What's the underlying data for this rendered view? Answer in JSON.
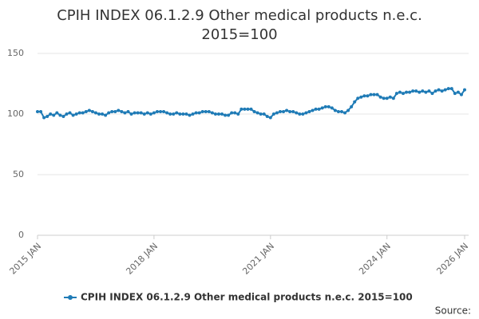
{
  "chart_data": {
    "type": "line",
    "title": "CPIH INDEX 06.1.2.9 Other medical products n.e.c. 2015=100",
    "source": "Source:",
    "categories": [
      "2015 JAN",
      null,
      null,
      null,
      null,
      null,
      null,
      null,
      null,
      null,
      null,
      null,
      null,
      null,
      null,
      null,
      null,
      null,
      null,
      null,
      null,
      null,
      null,
      null,
      null,
      null,
      null,
      null,
      null,
      null,
      null,
      null,
      null,
      null,
      null,
      null,
      "2018 JAN",
      null,
      null,
      null,
      null,
      null,
      null,
      null,
      null,
      null,
      null,
      null,
      null,
      null,
      null,
      null,
      null,
      null,
      null,
      null,
      null,
      null,
      null,
      null,
      null,
      null,
      null,
      null,
      null,
      null,
      null,
      null,
      null,
      null,
      null,
      null,
      "2021 JAN",
      null,
      null,
      null,
      null,
      null,
      null,
      null,
      null,
      null,
      null,
      null,
      null,
      null,
      null,
      null,
      null,
      null,
      null,
      null,
      null,
      null,
      null,
      null,
      null,
      null,
      null,
      null,
      null,
      null,
      null,
      null,
      null,
      null,
      null,
      null,
      "2024 JAN",
      null,
      null,
      null,
      null,
      null,
      null,
      null,
      null,
      null,
      null,
      null,
      null,
      null,
      null,
      null,
      null,
      null,
      null,
      null,
      null,
      null,
      null,
      null,
      "2026 JAN"
    ],
    "series": [
      {
        "name": "CPIH INDEX 06.1.2.9 Other medical products n.e.c. 2015=100",
        "color": "#1f7bb6",
        "values": [
          102,
          102,
          97,
          98,
          100,
          99,
          101,
          99,
          98,
          100,
          101,
          99,
          100,
          101,
          101,
          102,
          103,
          102,
          101,
          100,
          100,
          99,
          101,
          102,
          102,
          103,
          102,
          101,
          102,
          100,
          101,
          101,
          101,
          100,
          101,
          100,
          101,
          102,
          102,
          102,
          101,
          100,
          100,
          101,
          100,
          100,
          100,
          99,
          100,
          101,
          101,
          102,
          102,
          102,
          101,
          100,
          100,
          100,
          99,
          99,
          101,
          101,
          100,
          104,
          104,
          104,
          104,
          102,
          101,
          100,
          100,
          98,
          97,
          100,
          101,
          102,
          102,
          103,
          102,
          102,
          101,
          100,
          100,
          101,
          102,
          103,
          104,
          104,
          105,
          106,
          106,
          105,
          103,
          102,
          102,
          101,
          103,
          106,
          110,
          113,
          114,
          115,
          115,
          116,
          116,
          116,
          114,
          113,
          113,
          114,
          113,
          117,
          118,
          117,
          118,
          118,
          119,
          119,
          118,
          119,
          118,
          119,
          117,
          119,
          120,
          119,
          120,
          121,
          121,
          117,
          118,
          116,
          120
        ]
      }
    ],
    "ylim": [
      0,
      150
    ],
    "yticks": [
      0,
      50,
      100,
      150
    ],
    "grid": true
  }
}
